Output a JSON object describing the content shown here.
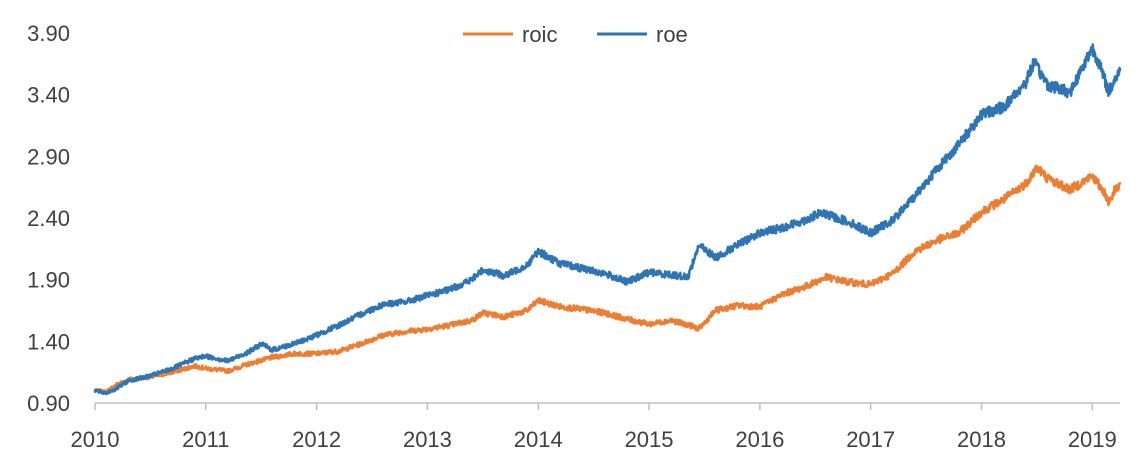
{
  "chart_data": {
    "type": "line",
    "title": "",
    "xlabel": "",
    "ylabel": "",
    "xlim": [
      2010,
      2019.25
    ],
    "ylim": [
      0.9,
      3.9
    ],
    "y_ticks": [
      "0.90",
      "1.40",
      "1.90",
      "2.40",
      "2.90",
      "3.40",
      "3.90"
    ],
    "x_ticks": [
      "2010",
      "2011",
      "2012",
      "2013",
      "2014",
      "2015",
      "2016",
      "2017",
      "2018",
      "2019"
    ],
    "grid": false,
    "legend_position": "top-center",
    "series": [
      {
        "name": "roic",
        "color": "#ED7D31",
        "x": [
          2010.0,
          2010.1,
          2010.2,
          2010.3,
          2010.5,
          2010.7,
          2010.9,
          2011.0,
          2011.2,
          2011.4,
          2011.6,
          2011.8,
          2012.0,
          2012.2,
          2012.4,
          2012.6,
          2012.8,
          2013.0,
          2013.2,
          2013.4,
          2013.5,
          2013.7,
          2013.9,
          2014.0,
          2014.2,
          2014.4,
          2014.6,
          2014.8,
          2015.0,
          2015.2,
          2015.4,
          2015.45,
          2015.6,
          2015.8,
          2016.0,
          2016.2,
          2016.4,
          2016.6,
          2016.8,
          2017.0,
          2017.2,
          2017.4,
          2017.6,
          2017.8,
          2018.0,
          2018.2,
          2018.4,
          2018.5,
          2018.6,
          2018.8,
          2019.0,
          2019.1,
          2019.15,
          2019.2,
          2019.25
        ],
        "y": [
          1.0,
          0.99,
          1.05,
          1.09,
          1.11,
          1.15,
          1.2,
          1.18,
          1.16,
          1.22,
          1.27,
          1.3,
          1.3,
          1.32,
          1.38,
          1.45,
          1.48,
          1.5,
          1.53,
          1.57,
          1.63,
          1.6,
          1.65,
          1.73,
          1.68,
          1.66,
          1.63,
          1.58,
          1.54,
          1.57,
          1.52,
          1.5,
          1.65,
          1.69,
          1.68,
          1.78,
          1.84,
          1.92,
          1.88,
          1.86,
          1.95,
          2.13,
          2.22,
          2.28,
          2.45,
          2.55,
          2.68,
          2.81,
          2.72,
          2.63,
          2.74,
          2.62,
          2.53,
          2.62,
          2.68
        ]
      },
      {
        "name": "roe",
        "color": "#2E75B6",
        "x": [
          2010.0,
          2010.1,
          2010.2,
          2010.3,
          2010.5,
          2010.7,
          2010.9,
          2011.0,
          2011.2,
          2011.4,
          2011.5,
          2011.6,
          2011.8,
          2012.0,
          2012.2,
          2012.4,
          2012.6,
          2012.8,
          2013.0,
          2013.2,
          2013.4,
          2013.5,
          2013.7,
          2013.9,
          2014.0,
          2014.2,
          2014.4,
          2014.6,
          2014.8,
          2015.0,
          2015.2,
          2015.35,
          2015.45,
          2015.6,
          2015.8,
          2016.0,
          2016.2,
          2016.4,
          2016.55,
          2016.8,
          2017.0,
          2017.2,
          2017.4,
          2017.6,
          2017.8,
          2018.0,
          2018.2,
          2018.4,
          2018.47,
          2018.6,
          2018.8,
          2019.0,
          2019.05,
          2019.15,
          2019.2,
          2019.25
        ],
        "y": [
          1.0,
          0.98,
          1.02,
          1.08,
          1.12,
          1.18,
          1.26,
          1.28,
          1.24,
          1.32,
          1.38,
          1.33,
          1.38,
          1.45,
          1.53,
          1.62,
          1.7,
          1.72,
          1.77,
          1.82,
          1.9,
          1.98,
          1.93,
          2.02,
          2.13,
          2.03,
          1.99,
          1.95,
          1.88,
          1.96,
          1.94,
          1.92,
          2.18,
          2.08,
          2.18,
          2.28,
          2.32,
          2.38,
          2.44,
          2.37,
          2.28,
          2.38,
          2.58,
          2.8,
          3.0,
          3.24,
          3.3,
          3.5,
          3.66,
          3.48,
          3.42,
          3.78,
          3.68,
          3.42,
          3.52,
          3.6
        ]
      }
    ]
  }
}
